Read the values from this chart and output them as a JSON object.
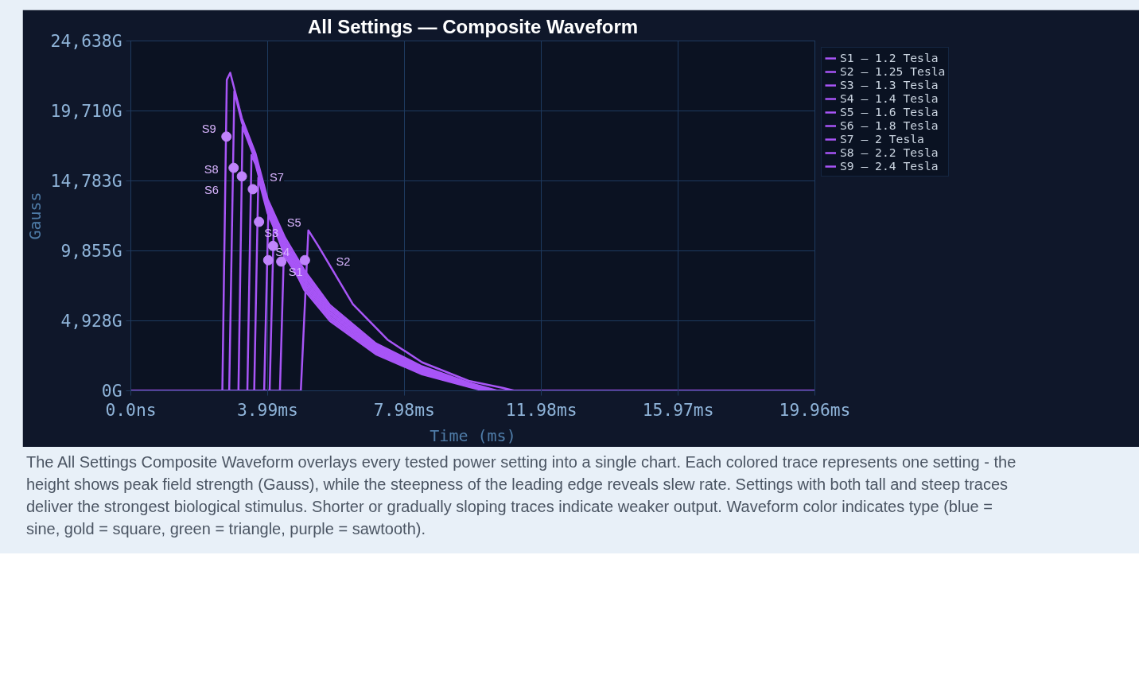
{
  "chart_data": {
    "type": "line",
    "title": "All Settings — Composite Waveform",
    "xlabel": "Time (ms)",
    "ylabel": "Gauss",
    "xlim": [
      0,
      19.96
    ],
    "ylim": [
      0,
      24638
    ],
    "xticks": [
      {
        "value": 0,
        "label": "0.0ns"
      },
      {
        "value": 3.99,
        "label": "3.99ms"
      },
      {
        "value": 7.98,
        "label": "7.98ms"
      },
      {
        "value": 11.98,
        "label": "11.98ms"
      },
      {
        "value": 15.97,
        "label": "15.97ms"
      },
      {
        "value": 19.96,
        "label": "19.96ms"
      }
    ],
    "yticks": [
      {
        "value": 0,
        "label": "0G"
      },
      {
        "value": 4928,
        "label": "4,928G"
      },
      {
        "value": 9855,
        "label": "9,855G"
      },
      {
        "value": 14783,
        "label": "14,783G"
      },
      {
        "value": 19710,
        "label": "19,710G"
      },
      {
        "value": 24638,
        "label": "24,638G"
      }
    ],
    "grid": true,
    "legend": "top right",
    "line_style": "solid",
    "series": [
      {
        "name": "S1 — 1.2 Tesla",
        "color": "#a855f7",
        "x": [
          0,
          4.3,
          4.35,
          4.47,
          5.06,
          5.81,
          7.15,
          8.5,
          9.86,
          10.3,
          19.96
        ],
        "values": [
          0,
          0,
          0,
          10100,
          7100,
          4920,
          2570,
          1160,
          280,
          0,
          0
        ]
      },
      {
        "name": "S2 — 1.25 Tesla",
        "color": "#a855f7",
        "x": [
          0,
          4.9,
          4.96,
          5.18,
          5.47,
          6.48,
          7.49,
          8.5,
          9.86,
          10.87,
          11.2,
          19.96
        ],
        "values": [
          0,
          0,
          0,
          11300,
          10200,
          6100,
          3600,
          2000,
          700,
          200,
          0,
          0
        ]
      },
      {
        "name": "S3 — 1.3 Tesla",
        "color": "#a855f7",
        "x": [
          0,
          4.0,
          4.05,
          4.17,
          4.5,
          5.06,
          5.81,
          7.15,
          8.5,
          9.86,
          10.4,
          19.96
        ],
        "values": [
          0,
          0,
          0,
          11600,
          9460,
          7300,
          5080,
          2680,
          1240,
          320,
          0,
          0
        ]
      },
      {
        "name": "S4 — 1.4 Tesla",
        "color": "#a855f7",
        "x": [
          0,
          3.84,
          3.89,
          4.01,
          4.5,
          5.06,
          5.81,
          7.15,
          8.5,
          9.86,
          10.45,
          19.96
        ],
        "values": [
          0,
          0,
          0,
          12400,
          9680,
          7500,
          5240,
          2790,
          1320,
          360,
          0,
          0
        ]
      },
      {
        "name": "S5 — 1.6 Tesla",
        "color": "#a855f7",
        "x": [
          0,
          3.55,
          3.6,
          3.72,
          3.99,
          4.5,
          5.06,
          5.81,
          7.15,
          8.5,
          9.86,
          10.5,
          19.96
        ],
        "values": [
          0,
          0,
          0,
          15000,
          12500,
          9900,
          7700,
          5400,
          2900,
          1400,
          400,
          0,
          0
        ]
      },
      {
        "name": "S6 — 1.8 Tesla",
        "color": "#a855f7",
        "x": [
          0,
          3.35,
          3.4,
          3.52,
          3.64,
          3.99,
          4.5,
          5.06,
          5.81,
          7.15,
          8.5,
          9.86,
          10.55,
          19.96
        ],
        "values": [
          0,
          0,
          0,
          16600,
          15950,
          12750,
          10120,
          7900,
          5560,
          3010,
          1480,
          440,
          0,
          0
        ]
      },
      {
        "name": "S7 — 2 Tesla",
        "color": "#a855f7",
        "x": [
          0,
          3.09,
          3.14,
          3.26,
          3.64,
          3.99,
          4.5,
          5.06,
          5.81,
          7.15,
          8.5,
          9.86,
          10.6,
          19.96
        ],
        "values": [
          0,
          0,
          0,
          18600,
          16200,
          13000,
          10340,
          8100,
          5720,
          3120,
          1560,
          480,
          0,
          0
        ]
      },
      {
        "name": "S8 — 2.2 Tesla",
        "color": "#a855f7",
        "x": [
          0,
          2.82,
          2.87,
          3.02,
          3.24,
          3.64,
          3.99,
          4.5,
          5.06,
          5.81,
          7.15,
          8.5,
          9.86,
          10.65,
          19.96
        ],
        "values": [
          0,
          0,
          0,
          21100,
          18900,
          16450,
          13250,
          10560,
          8300,
          5880,
          3230,
          1640,
          520,
          0,
          0
        ]
      },
      {
        "name": "S9 — 2.4 Tesla",
        "color": "#a855f7",
        "x": [
          0,
          2.62,
          2.67,
          2.8,
          2.9,
          3.24,
          3.64,
          3.99,
          4.5,
          5.06,
          5.81,
          7.15,
          8.5,
          9.86,
          10.7,
          19.96
        ],
        "values": [
          0,
          0,
          0,
          21900,
          22400,
          19200,
          16700,
          13500,
          10780,
          8500,
          6040,
          3340,
          1720,
          560,
          0,
          0
        ]
      }
    ],
    "annotations": [
      {
        "text": "S9",
        "x": 2.79,
        "y": 17900
      },
      {
        "text": "S8",
        "x": 3.0,
        "y": 15700
      },
      {
        "text": "S7",
        "x": 3.24,
        "y": 15100
      },
      {
        "text": "S6",
        "x": 3.56,
        "y": 14200
      },
      {
        "text": "S5",
        "x": 3.74,
        "y": 11900
      },
      {
        "text": "S3",
        "x": 4.15,
        "y": 10200
      },
      {
        "text": "S4",
        "x": 4.01,
        "y": 9200
      },
      {
        "text": "S1",
        "x": 4.39,
        "y": 9100
      },
      {
        "text": "S2",
        "x": 5.08,
        "y": 9200
      },
      "The All Settings Composite Waveform overlays every tested power setting into a single chart. Each colored trace represents one setting  -  the height shows peak field strength (Gauss), while the steepness of the leading edge reveals slew rate. Settings with both tall and steep traces deliver the strongest biological stimulus. Shorter or gradually sloping traces indicate weaker output. Waveform color indicates type (blue = sine, gold = square, green = triangle, purple = sawtooth)."
    ]
  }
}
